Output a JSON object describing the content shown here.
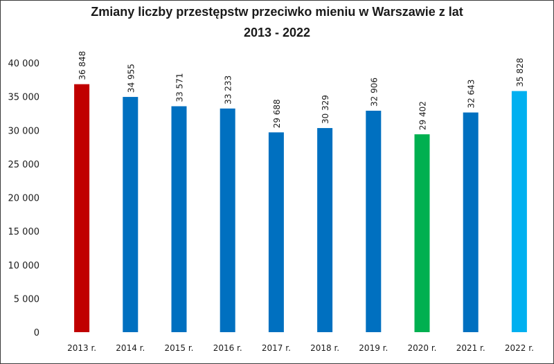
{
  "chart_data": {
    "type": "bar",
    "title_line1": "Zmiany liczby przestępstw przeciwko mieniu w Warszawie z lat",
    "title_line2": "2013 - 2022",
    "xlabel": "",
    "ylabel": "",
    "ylim": [
      0,
      40000
    ],
    "yticks": [
      "0",
      "5 000",
      "10 000",
      "15 000",
      "20 000",
      "25 000",
      "30 000",
      "35 000",
      "40 000"
    ],
    "grid": false,
    "categories": [
      "2013 r.",
      "2014 r.",
      "2015 r.",
      "2016 r.",
      "2017 r.",
      "2018 r.",
      "2019 r.",
      "2020 r.",
      "2021 r.",
      "2022 r."
    ],
    "values": [
      36848,
      34955,
      33571,
      33233,
      29688,
      30329,
      32906,
      29402,
      32643,
      35828
    ],
    "value_labels": [
      "36 848",
      "34 955",
      "33 571",
      "33 233",
      "29 688",
      "30 329",
      "32 906",
      "29 402",
      "32 643",
      "35 828"
    ],
    "colors": [
      "#c00000",
      "#0070c0",
      "#0070c0",
      "#0070c0",
      "#0070c0",
      "#0070c0",
      "#0070c0",
      "#00b050",
      "#0070c0",
      "#00b0f0"
    ]
  }
}
